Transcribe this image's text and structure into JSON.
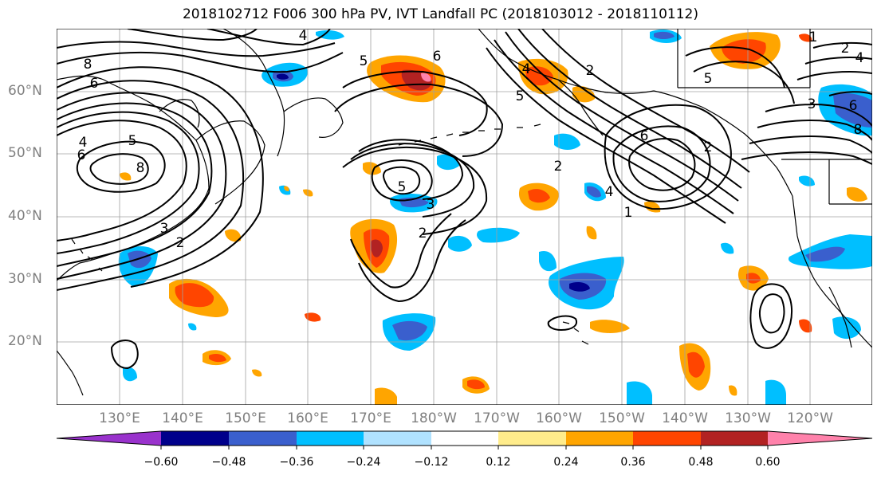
{
  "title": "2018102712 F006 300 hPa PV, IVT Landfall PC (2018103012 - 2018110112)",
  "lat_labels": [
    "60°N",
    "50°N",
    "40°N",
    "30°N",
    "20°N"
  ],
  "lon_labels": [
    "130°E",
    "140°E",
    "150°E",
    "160°E",
    "170°E",
    "180°W",
    "170°W",
    "160°W",
    "150°W",
    "140°W",
    "130°W",
    "120°W"
  ],
  "colorbar": {
    "ticks": [
      "−0.60",
      "−0.48",
      "−0.36",
      "−0.24",
      "−0.12",
      "0.12",
      "0.24",
      "0.36",
      "0.48",
      "0.60"
    ],
    "colors": [
      "#9932cc",
      "#00008b",
      "#3a5fcd",
      "#00bfff",
      "#b0e2ff",
      "#ffffff",
      "#ffec8b",
      "#ffa500",
      "#ff4500",
      "#b22222",
      "#ff82ab"
    ]
  },
  "contour_labels": [
    "8",
    "6",
    "4",
    "5",
    "4",
    "6",
    "8",
    "5",
    "3",
    "2",
    "6",
    "5",
    "3",
    "2",
    "2",
    "2",
    "4",
    "5",
    "6",
    "4",
    "1",
    "2",
    "1",
    "2",
    "5",
    "4",
    "3",
    "6",
    "8"
  ],
  "colors": {
    "contour": "#000000",
    "grid": "#a0a0a0",
    "coast": "#000000",
    "axis_text": "#7f7f7f"
  }
}
